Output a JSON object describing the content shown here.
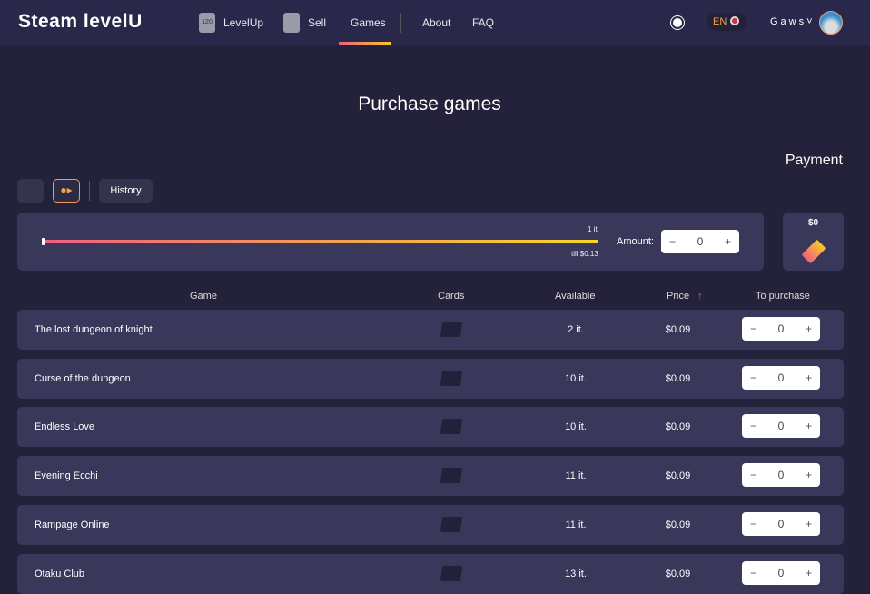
{
  "header": {
    "logo": "Steam levelU",
    "nav": [
      {
        "label": "LevelUp",
        "icon": "level-badge-icon",
        "badge": "120"
      },
      {
        "label": "Sell",
        "icon": "cards-icon"
      },
      {
        "label": "Games",
        "active": true
      },
      {
        "label": "About"
      },
      {
        "label": "FAQ"
      }
    ],
    "lang": "EN",
    "user": "Gaws"
  },
  "page": {
    "title": "Purchase games",
    "payment_label": "Payment",
    "history": "History"
  },
  "slider": {
    "value_label": "1 it.",
    "till": "till $0.13",
    "fill": 1.0
  },
  "amount": {
    "label": "Amount:",
    "value": "0",
    "minus": "−",
    "plus": "+"
  },
  "summary": {
    "total": "$0"
  },
  "table": {
    "headers": [
      "Game",
      "Cards",
      "Available",
      "Price",
      "To purchase"
    ],
    "rows": [
      {
        "name": "The lost dungeon of knight",
        "available": "2 it.",
        "price": "$0.09",
        "qty": "0"
      },
      {
        "name": "Curse of the dungeon",
        "available": "10 it.",
        "price": "$0.09",
        "qty": "0"
      },
      {
        "name": "Endless Love",
        "available": "10 it.",
        "price": "$0.09",
        "qty": "0"
      },
      {
        "name": "Evening Ecchi",
        "available": "11 it.",
        "price": "$0.09",
        "qty": "0"
      },
      {
        "name": "Rampage Online",
        "available": "11 it.",
        "price": "$0.09",
        "qty": "0"
      },
      {
        "name": "Otaku Club",
        "available": "13 it.",
        "price": "$0.09",
        "qty": "0"
      }
    ]
  },
  "colors": {
    "accent_start": "#f06080",
    "accent_end": "#f8d62a",
    "bg": "#23223a",
    "panel": "#39375a"
  }
}
